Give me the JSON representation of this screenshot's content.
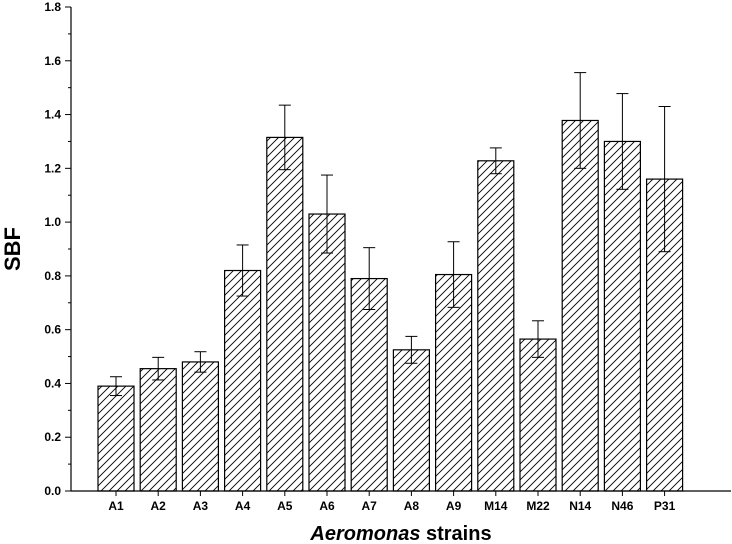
{
  "chart_data": {
    "type": "bar",
    "title": "",
    "xlabel_italic": "Aeromonas",
    "xlabel_rest": " strains",
    "ylabel": "SBF",
    "ylim": [
      0,
      1.8
    ],
    "yticks": [
      "0.0",
      "0.2",
      "0.4",
      "0.6",
      "0.8",
      "1.0",
      "1.2",
      "1.4",
      "1.6",
      "1.8"
    ],
    "ytick_values": [
      0,
      0.2,
      0.4,
      0.6,
      0.8,
      1.0,
      1.2,
      1.4,
      1.6,
      1.8
    ],
    "categories": [
      "A1",
      "A2",
      "A3",
      "A4",
      "A5",
      "A6",
      "A7",
      "A8",
      "A9",
      "M14",
      "M22",
      "N14",
      "N46",
      "P31"
    ],
    "values": [
      0.39,
      0.455,
      0.48,
      0.82,
      1.315,
      1.03,
      0.79,
      0.525,
      0.805,
      1.228,
      0.565,
      1.378,
      1.3,
      1.16
    ],
    "errors": [
      0.035,
      0.042,
      0.038,
      0.095,
      0.12,
      0.145,
      0.115,
      0.05,
      0.122,
      0.048,
      0.068,
      0.178,
      0.178,
      0.27
    ],
    "grid": false,
    "legend": "none",
    "bar_fill": "hatched",
    "colors": {
      "bar_stroke": "#000000",
      "hatch": "#000000",
      "background": "#ffffff"
    }
  }
}
